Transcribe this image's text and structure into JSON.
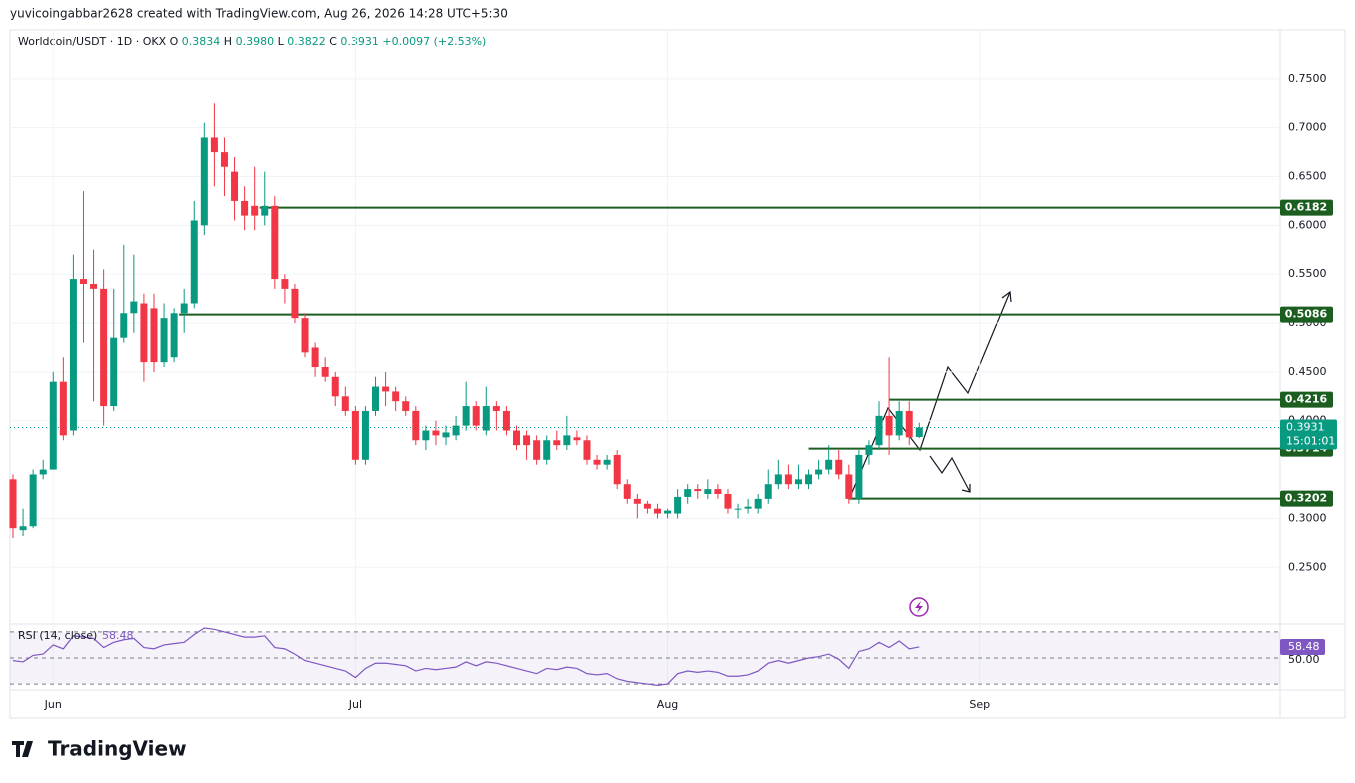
{
  "chart_data": {
    "type": "candlestick",
    "credit": "yuvicoingabbar2628 created with TradingView.com, Aug 26, 2026 14:28 UTC+5:30",
    "legend": {
      "symbol": "Worldcoin/USDT · 1D · OKX",
      "ohlc": [
        {
          "key": "O",
          "value": "0.3834"
        },
        {
          "key": "H",
          "value": "0.3980"
        },
        {
          "key": "L",
          "value": "0.3822"
        },
        {
          "key": "C",
          "value": "0.3931"
        }
      ],
      "change": "+0.0097 (+2.53%)"
    },
    "logo": "TradingView",
    "countdown": "15:01:01",
    "up_color": "#089981",
    "down_color": "#f23645",
    "level_color": "#1b5e20",
    "categories": [
      null,
      null,
      null,
      null,
      "Jun",
      null,
      null,
      null,
      null,
      null,
      null,
      null,
      null,
      null,
      null,
      null,
      null,
      null,
      null,
      null,
      null,
      null,
      null,
      null,
      null,
      null,
      null,
      null,
      null,
      null,
      null,
      null,
      null,
      null,
      "Jul",
      null,
      null,
      null,
      null,
      null,
      null,
      null,
      null,
      null,
      null,
      null,
      null,
      null,
      null,
      null,
      null,
      null,
      null,
      null,
      null,
      null,
      null,
      null,
      null,
      null,
      null,
      null,
      null,
      null,
      null,
      "Aug",
      null,
      null,
      null,
      null,
      null,
      null,
      null,
      null,
      null,
      null,
      null,
      null,
      null,
      null,
      null,
      null,
      null,
      null,
      null,
      null,
      null,
      null,
      null,
      null,
      null
    ],
    "xticks": [
      {
        "value": 4,
        "label": "Jun"
      },
      {
        "value": 34,
        "label": "Jul"
      },
      {
        "value": 65,
        "label": "Aug"
      },
      {
        "value": 96,
        "label": "Sep"
      }
    ],
    "open": [
      0.34,
      0.288,
      0.292,
      0.345,
      0.35,
      0.44,
      0.39,
      0.545,
      0.54,
      0.535,
      0.415,
      0.485,
      0.51,
      0.52,
      0.515,
      0.46,
      0.465,
      0.51,
      0.52,
      0.6,
      0.69,
      0.675,
      0.655,
      0.625,
      0.62,
      0.61,
      0.62,
      0.545,
      0.535,
      0.505,
      0.475,
      0.455,
      0.445,
      0.425,
      0.41,
      0.36,
      0.41,
      0.435,
      0.43,
      0.42,
      0.41,
      0.38,
      0.39,
      0.383,
      0.385,
      0.395,
      0.415,
      0.39,
      0.415,
      0.41,
      0.39,
      0.385,
      0.38,
      0.36,
      0.38,
      0.375,
      0.383,
      0.38,
      0.36,
      0.355,
      0.365,
      0.335,
      0.32,
      0.315,
      0.31,
      0.305,
      0.305,
      0.322,
      0.33,
      0.325,
      0.33,
      0.325,
      0.31,
      0.31,
      0.31,
      0.32,
      0.335,
      0.345,
      0.335,
      0.335,
      0.345,
      0.35,
      0.36,
      0.345,
      0.32,
      0.365,
      0.375,
      0.405,
      0.385,
      0.41,
      0.3834
    ],
    "high": [
      0.345,
      0.31,
      0.35,
      0.36,
      0.45,
      0.465,
      0.57,
      0.635,
      0.575,
      0.555,
      0.535,
      0.58,
      0.57,
      0.53,
      0.53,
      0.52,
      0.515,
      0.535,
      0.625,
      0.705,
      0.725,
      0.69,
      0.67,
      0.64,
      0.66,
      0.655,
      0.63,
      0.55,
      0.54,
      0.51,
      0.48,
      0.465,
      0.45,
      0.435,
      0.415,
      0.415,
      0.445,
      0.45,
      0.435,
      0.425,
      0.415,
      0.395,
      0.4,
      0.395,
      0.405,
      0.44,
      0.42,
      0.435,
      0.42,
      0.415,
      0.395,
      0.39,
      0.385,
      0.385,
      0.39,
      0.405,
      0.39,
      0.385,
      0.365,
      0.365,
      0.37,
      0.34,
      0.325,
      0.318,
      0.315,
      0.31,
      0.33,
      0.335,
      0.335,
      0.34,
      0.335,
      0.33,
      0.315,
      0.32,
      0.325,
      0.35,
      0.36,
      0.355,
      0.355,
      0.35,
      0.36,
      0.375,
      0.37,
      0.355,
      0.37,
      0.38,
      0.42,
      0.465,
      0.42,
      0.42,
      0.398
    ],
    "low": [
      0.28,
      0.282,
      0.29,
      0.34,
      0.35,
      0.38,
      0.385,
      0.48,
      0.42,
      0.395,
      0.41,
      0.48,
      0.49,
      0.44,
      0.45,
      0.455,
      0.46,
      0.49,
      0.515,
      0.59,
      0.64,
      0.63,
      0.605,
      0.595,
      0.595,
      0.6,
      0.535,
      0.52,
      0.5,
      0.465,
      0.445,
      0.44,
      0.415,
      0.405,
      0.355,
      0.355,
      0.405,
      0.415,
      0.41,
      0.405,
      0.375,
      0.37,
      0.375,
      0.375,
      0.38,
      0.39,
      0.39,
      0.385,
      0.39,
      0.385,
      0.37,
      0.36,
      0.355,
      0.355,
      0.37,
      0.37,
      0.375,
      0.355,
      0.35,
      0.35,
      0.33,
      0.315,
      0.3,
      0.305,
      0.3,
      0.3,
      0.3,
      0.315,
      0.32,
      0.32,
      0.32,
      0.305,
      0.3,
      0.305,
      0.305,
      0.315,
      0.33,
      0.33,
      0.33,
      0.33,
      0.34,
      0.345,
      0.34,
      0.315,
      0.315,
      0.355,
      0.37,
      0.365,
      0.38,
      0.375,
      0.3822
    ],
    "close": [
      0.29,
      0.292,
      0.345,
      0.35,
      0.44,
      0.385,
      0.545,
      0.54,
      0.535,
      0.415,
      0.485,
      0.51,
      0.522,
      0.46,
      0.46,
      0.505,
      0.51,
      0.52,
      0.605,
      0.69,
      0.675,
      0.66,
      0.625,
      0.61,
      0.61,
      0.62,
      0.545,
      0.535,
      0.505,
      0.47,
      0.455,
      0.445,
      0.425,
      0.41,
      0.36,
      0.41,
      0.435,
      0.43,
      0.42,
      0.41,
      0.38,
      0.39,
      0.385,
      0.388,
      0.395,
      0.415,
      0.395,
      0.415,
      0.41,
      0.39,
      0.375,
      0.375,
      0.36,
      0.38,
      0.375,
      0.385,
      0.38,
      0.36,
      0.355,
      0.36,
      0.335,
      0.32,
      0.315,
      0.31,
      0.305,
      0.308,
      0.322,
      0.33,
      0.328,
      0.33,
      0.325,
      0.31,
      0.31,
      0.312,
      0.32,
      0.335,
      0.345,
      0.335,
      0.34,
      0.345,
      0.35,
      0.36,
      0.345,
      0.32,
      0.365,
      0.375,
      0.405,
      0.385,
      0.41,
      0.383,
      0.3931
    ],
    "ylim": [
      0.196,
      0.8
    ],
    "yticks": [
      {
        "value": 0.25,
        "label": "0.2500"
      },
      {
        "value": 0.3,
        "label": "0.3000"
      },
      {
        "value": 0.4,
        "label": "0.4000"
      },
      {
        "value": 0.45,
        "label": "0.4500"
      },
      {
        "value": 0.5,
        "label": "0.5000"
      },
      {
        "value": 0.55,
        "label": "0.5500"
      },
      {
        "value": 0.6,
        "label": "0.6000"
      },
      {
        "value": 0.65,
        "label": "0.6500"
      },
      {
        "value": 0.7,
        "label": "0.7000"
      },
      {
        "value": 0.75,
        "label": "0.7500"
      }
    ],
    "grid": true,
    "levels": [
      0.6182,
      0.5086,
      0.4216,
      0.3714,
      0.3202
    ],
    "rsi": {
      "title": "RSI (14, close)",
      "color": "#7e57c2",
      "values": [
        48,
        47,
        52,
        53,
        60,
        57,
        67,
        66,
        65,
        58,
        62,
        64,
        65,
        58,
        57,
        60,
        61,
        62,
        68,
        73,
        72,
        70,
        68,
        66,
        66,
        67,
        58,
        57,
        53,
        48,
        46,
        44,
        42,
        40,
        35,
        42,
        46,
        46,
        45,
        44,
        40,
        42,
        41,
        42,
        43,
        47,
        44,
        47,
        46,
        44,
        42,
        40,
        38,
        42,
        41,
        43,
        42,
        38,
        37,
        38,
        34,
        32,
        31,
        30,
        29,
        30,
        38,
        40,
        39,
        40,
        39,
        36,
        36,
        37,
        40,
        46,
        48,
        46,
        48,
        50,
        51,
        53,
        49,
        42,
        55,
        57,
        62,
        58,
        63,
        57,
        58.48
      ],
      "ylim": [
        27,
        73
      ],
      "bands": [
        70,
        50,
        30
      ],
      "yticks": [
        {
          "value": 50,
          "label": "50.00"
        }
      ]
    }
  }
}
